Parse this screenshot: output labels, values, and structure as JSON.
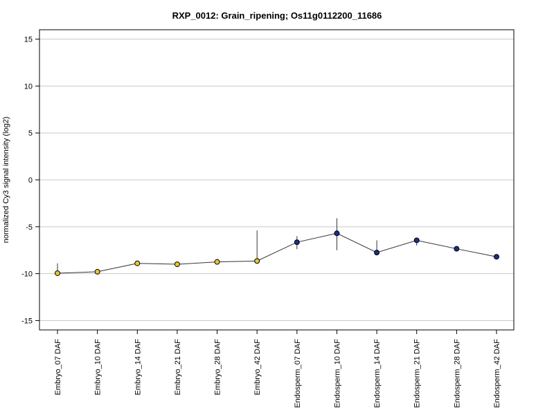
{
  "chart_data": {
    "type": "line",
    "title": "RXP_0012: Grain_ripening; Os11g0112200_11686",
    "xlabel": "",
    "ylabel": "normalized Cy3 signal intensity (log2)",
    "ylim": [
      -16,
      16
    ],
    "yticks": [
      15,
      10,
      5,
      0,
      -5,
      -10,
      -15
    ],
    "grid": true,
    "categories": [
      "Embryo_07 DAF",
      "Embryo_10 DAF",
      "Embryo_14 DAF",
      "Embryo_21 DAF",
      "Embryo_28 DAF",
      "Embryo_42 DAF",
      "Endosperm_07 DAF",
      "Endosperm_10 DAF",
      "Endosperm_14 DAF",
      "Endosperm_21 DAF",
      "Endosperm_28 DAF",
      "Endosperm_42 DAF"
    ],
    "series": [
      {
        "values": [
          -9.95,
          -9.8,
          -8.9,
          -9.0,
          -8.75,
          -8.65,
          -6.65,
          -5.7,
          -7.75,
          -6.45,
          -7.35,
          -8.2
        ],
        "err_low": [
          -10.1,
          -9.95,
          -8.95,
          -9.05,
          -8.95,
          -8.9,
          -7.4,
          -7.5,
          -7.8,
          -7.0,
          -7.35,
          -8.25
        ],
        "err_high": [
          -8.9,
          -9.55,
          -8.75,
          -8.95,
          -8.45,
          -5.4,
          -6.0,
          -4.1,
          -6.45,
          -6.3,
          -7.25,
          -8.15
        ],
        "colors": [
          "#e8c630",
          "#e8c630",
          "#e8c630",
          "#e8c630",
          "#e8c630",
          "#e8c630",
          "#1a2f8c",
          "#1a2f8c",
          "#1a2f8c",
          "#1a2f8c",
          "#1a2f8c",
          "#1a2f8c"
        ]
      }
    ]
  }
}
